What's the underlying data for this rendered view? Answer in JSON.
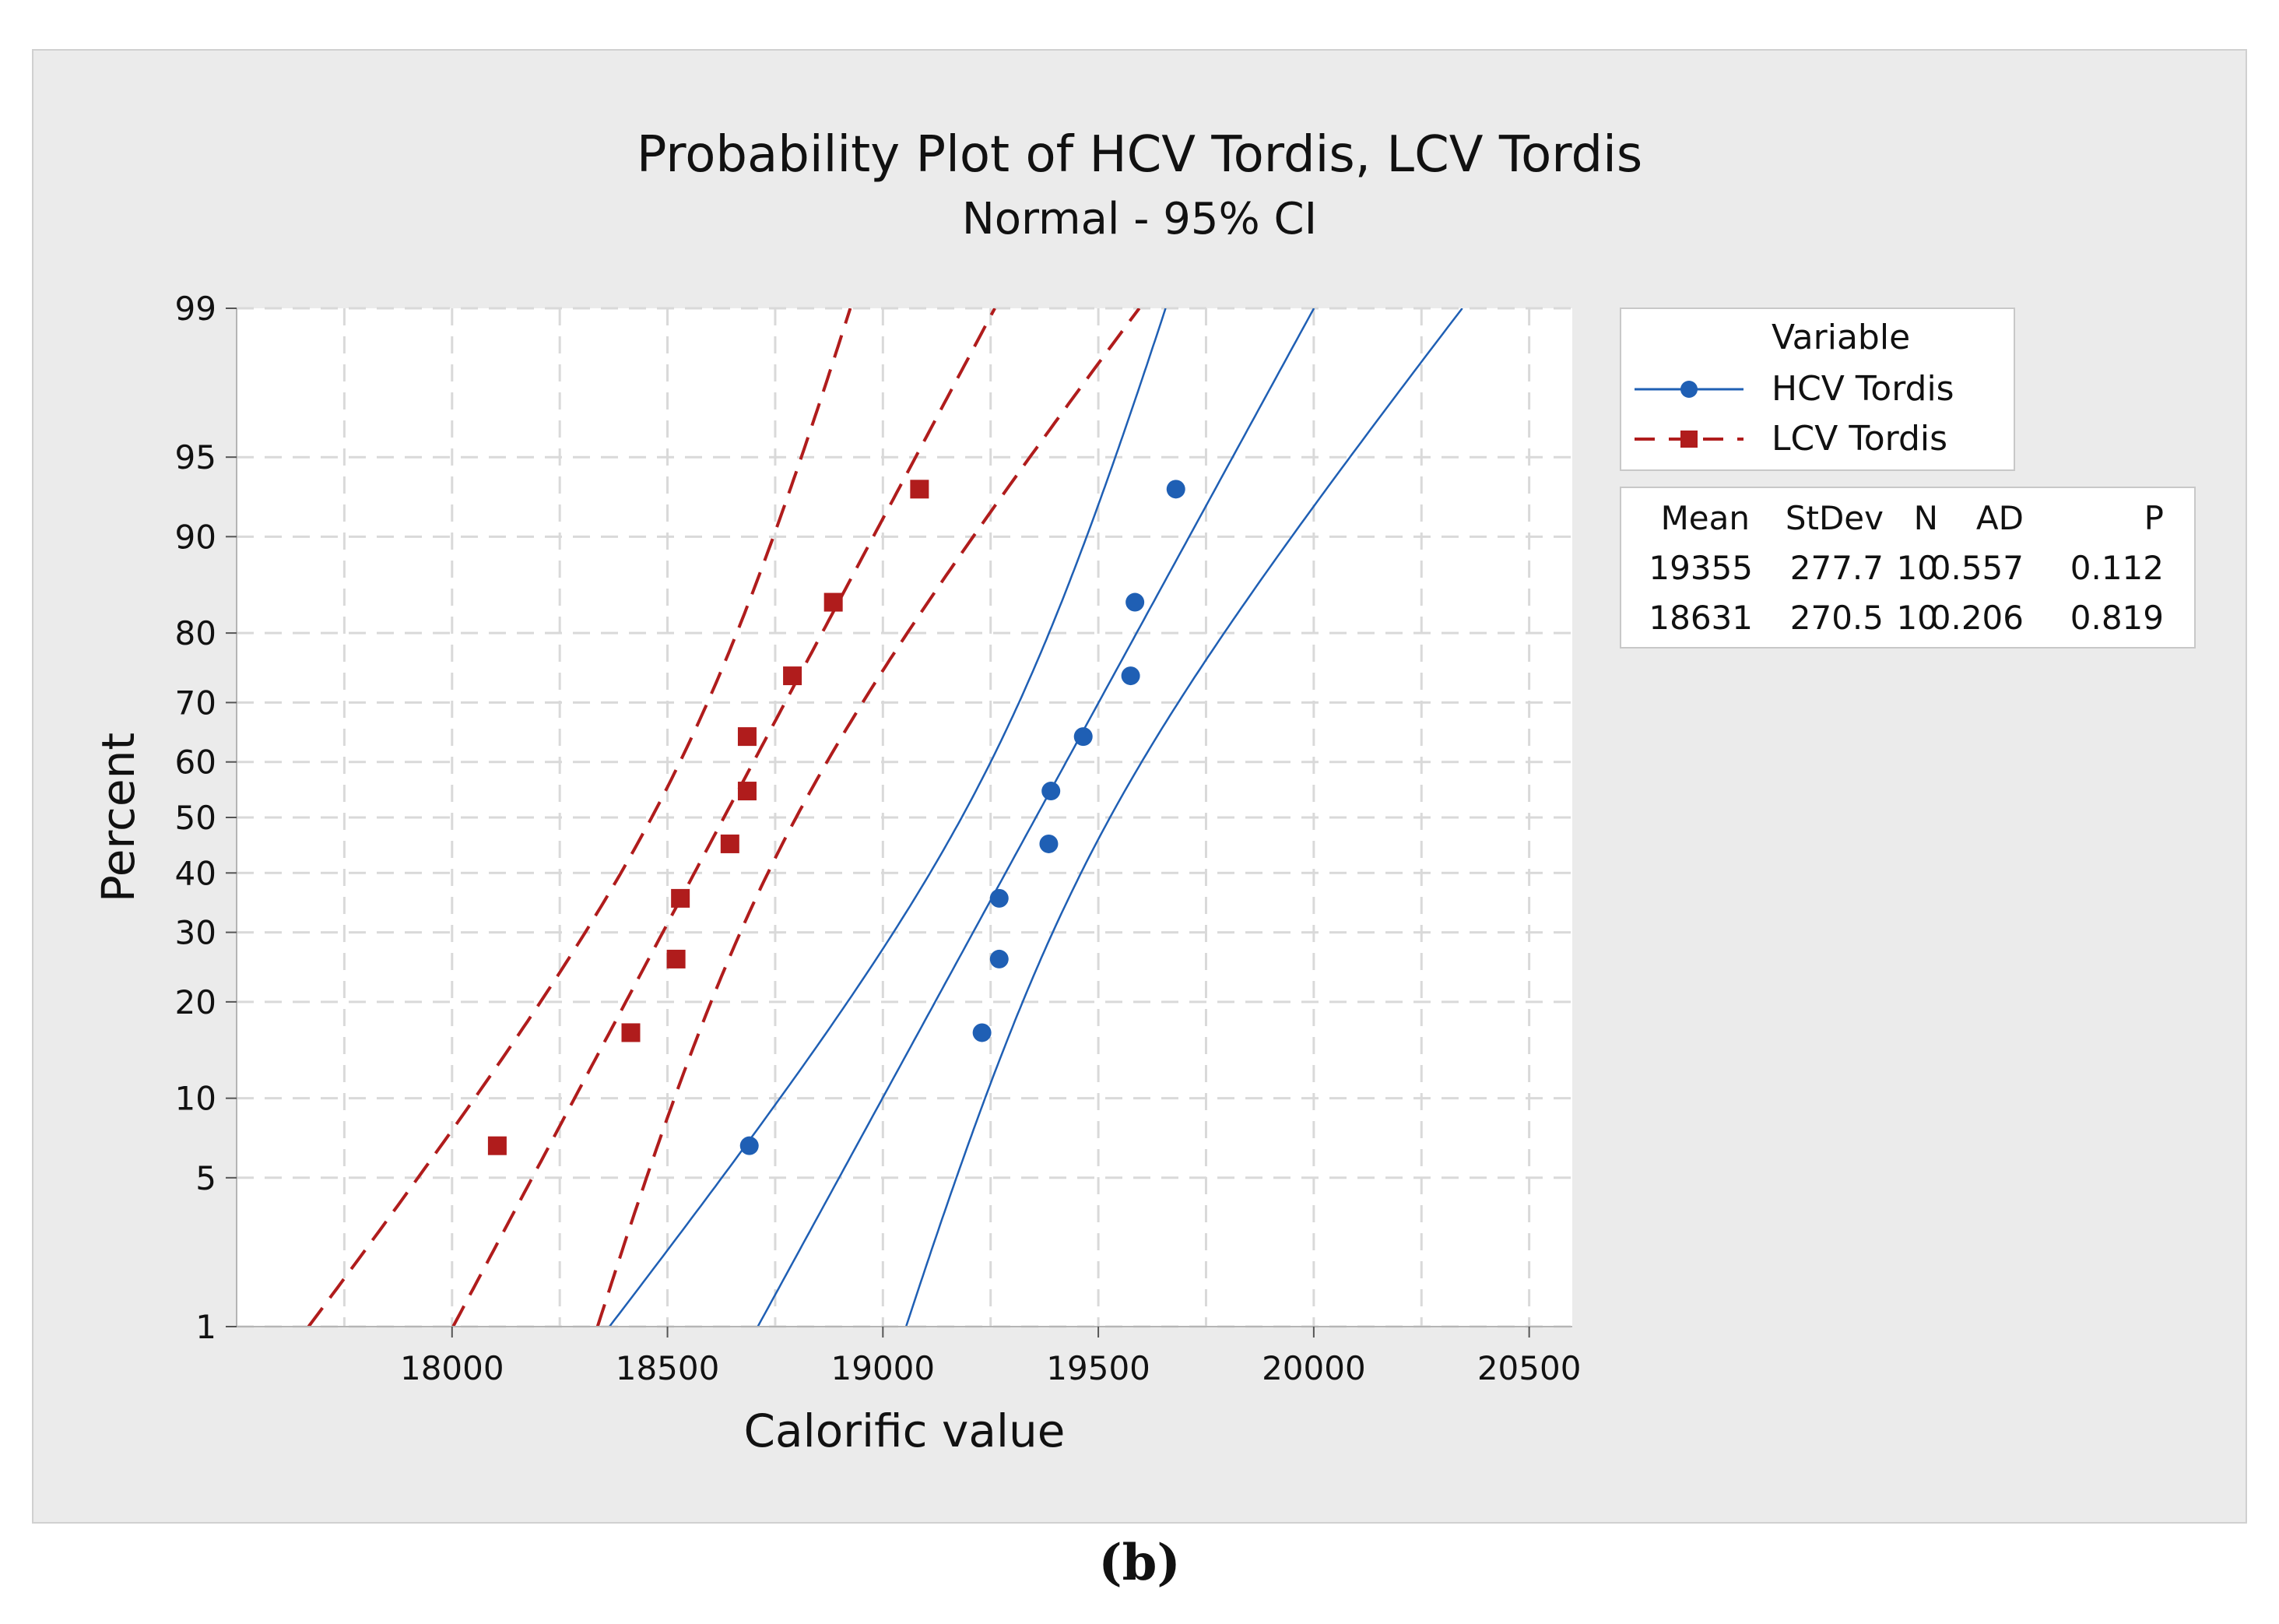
{
  "caption": "(b)",
  "chart_data": {
    "type": "scatter",
    "title": "Probability Plot of HCV Tordis, LCV Tordis",
    "subtitle": "Normal - 95% CI",
    "xlabel": "Calorific value",
    "ylabel": "Percent",
    "xlim": [
      17500,
      20600
    ],
    "ylim": [
      1,
      99
    ],
    "x_ticks": [
      "18000",
      "18500",
      "19000",
      "19500",
      "20000",
      "20500"
    ],
    "x_tick_values": [
      18000,
      18500,
      19000,
      19500,
      20000,
      20500
    ],
    "y_ticks": [
      "1",
      "5",
      "10",
      "20",
      "30",
      "40",
      "50",
      "60",
      "70",
      "80",
      "90",
      "95",
      "99"
    ],
    "y_tick_values": [
      1,
      5,
      10,
      20,
      30,
      40,
      50,
      60,
      70,
      80,
      90,
      95,
      99
    ],
    "grid": true,
    "legend": {
      "title": "Variable",
      "position": "right",
      "entries": [
        "HCV Tordis",
        "LCV Tordis"
      ]
    },
    "stats_table": {
      "headers": [
        "Mean",
        "StDev",
        "N",
        "AD",
        "P"
      ],
      "rows": [
        [
          "19355",
          "277.7",
          "10",
          "0.557",
          "0.112"
        ],
        [
          "18631",
          "270.5",
          "10",
          "0.206",
          "0.819"
        ]
      ]
    },
    "series": [
      {
        "name": "HCV Tordis",
        "color": "#1f5fb4",
        "marker": "circle",
        "line_style": "solid",
        "points": [
          {
            "x": 18690,
            "y": 6.7
          },
          {
            "x": 19230,
            "y": 16.3
          },
          {
            "x": 19270,
            "y": 25.9
          },
          {
            "x": 19270,
            "y": 35.6
          },
          {
            "x": 19385,
            "y": 45.2
          },
          {
            "x": 19390,
            "y": 54.8
          },
          {
            "x": 19465,
            "y": 64.4
          },
          {
            "x": 19575,
            "y": 74.1
          },
          {
            "x": 19585,
            "y": 83.7
          },
          {
            "x": 19680,
            "y": 93.3
          }
        ],
        "mean": 19355,
        "stdev": 277.7
      },
      {
        "name": "LCV Tordis",
        "color": "#b01c1c",
        "marker": "square",
        "line_style": "dashed",
        "points": [
          {
            "x": 18105,
            "y": 6.7
          },
          {
            "x": 18415,
            "y": 16.3
          },
          {
            "x": 18520,
            "y": 25.9
          },
          {
            "x": 18530,
            "y": 35.6
          },
          {
            "x": 18645,
            "y": 45.2
          },
          {
            "x": 18685,
            "y": 54.8
          },
          {
            "x": 18685,
            "y": 64.4
          },
          {
            "x": 18790,
            "y": 74.1
          },
          {
            "x": 18885,
            "y": 83.7
          },
          {
            "x": 19085,
            "y": 93.3
          }
        ],
        "mean": 18631,
        "stdev": 270.5
      }
    ]
  }
}
